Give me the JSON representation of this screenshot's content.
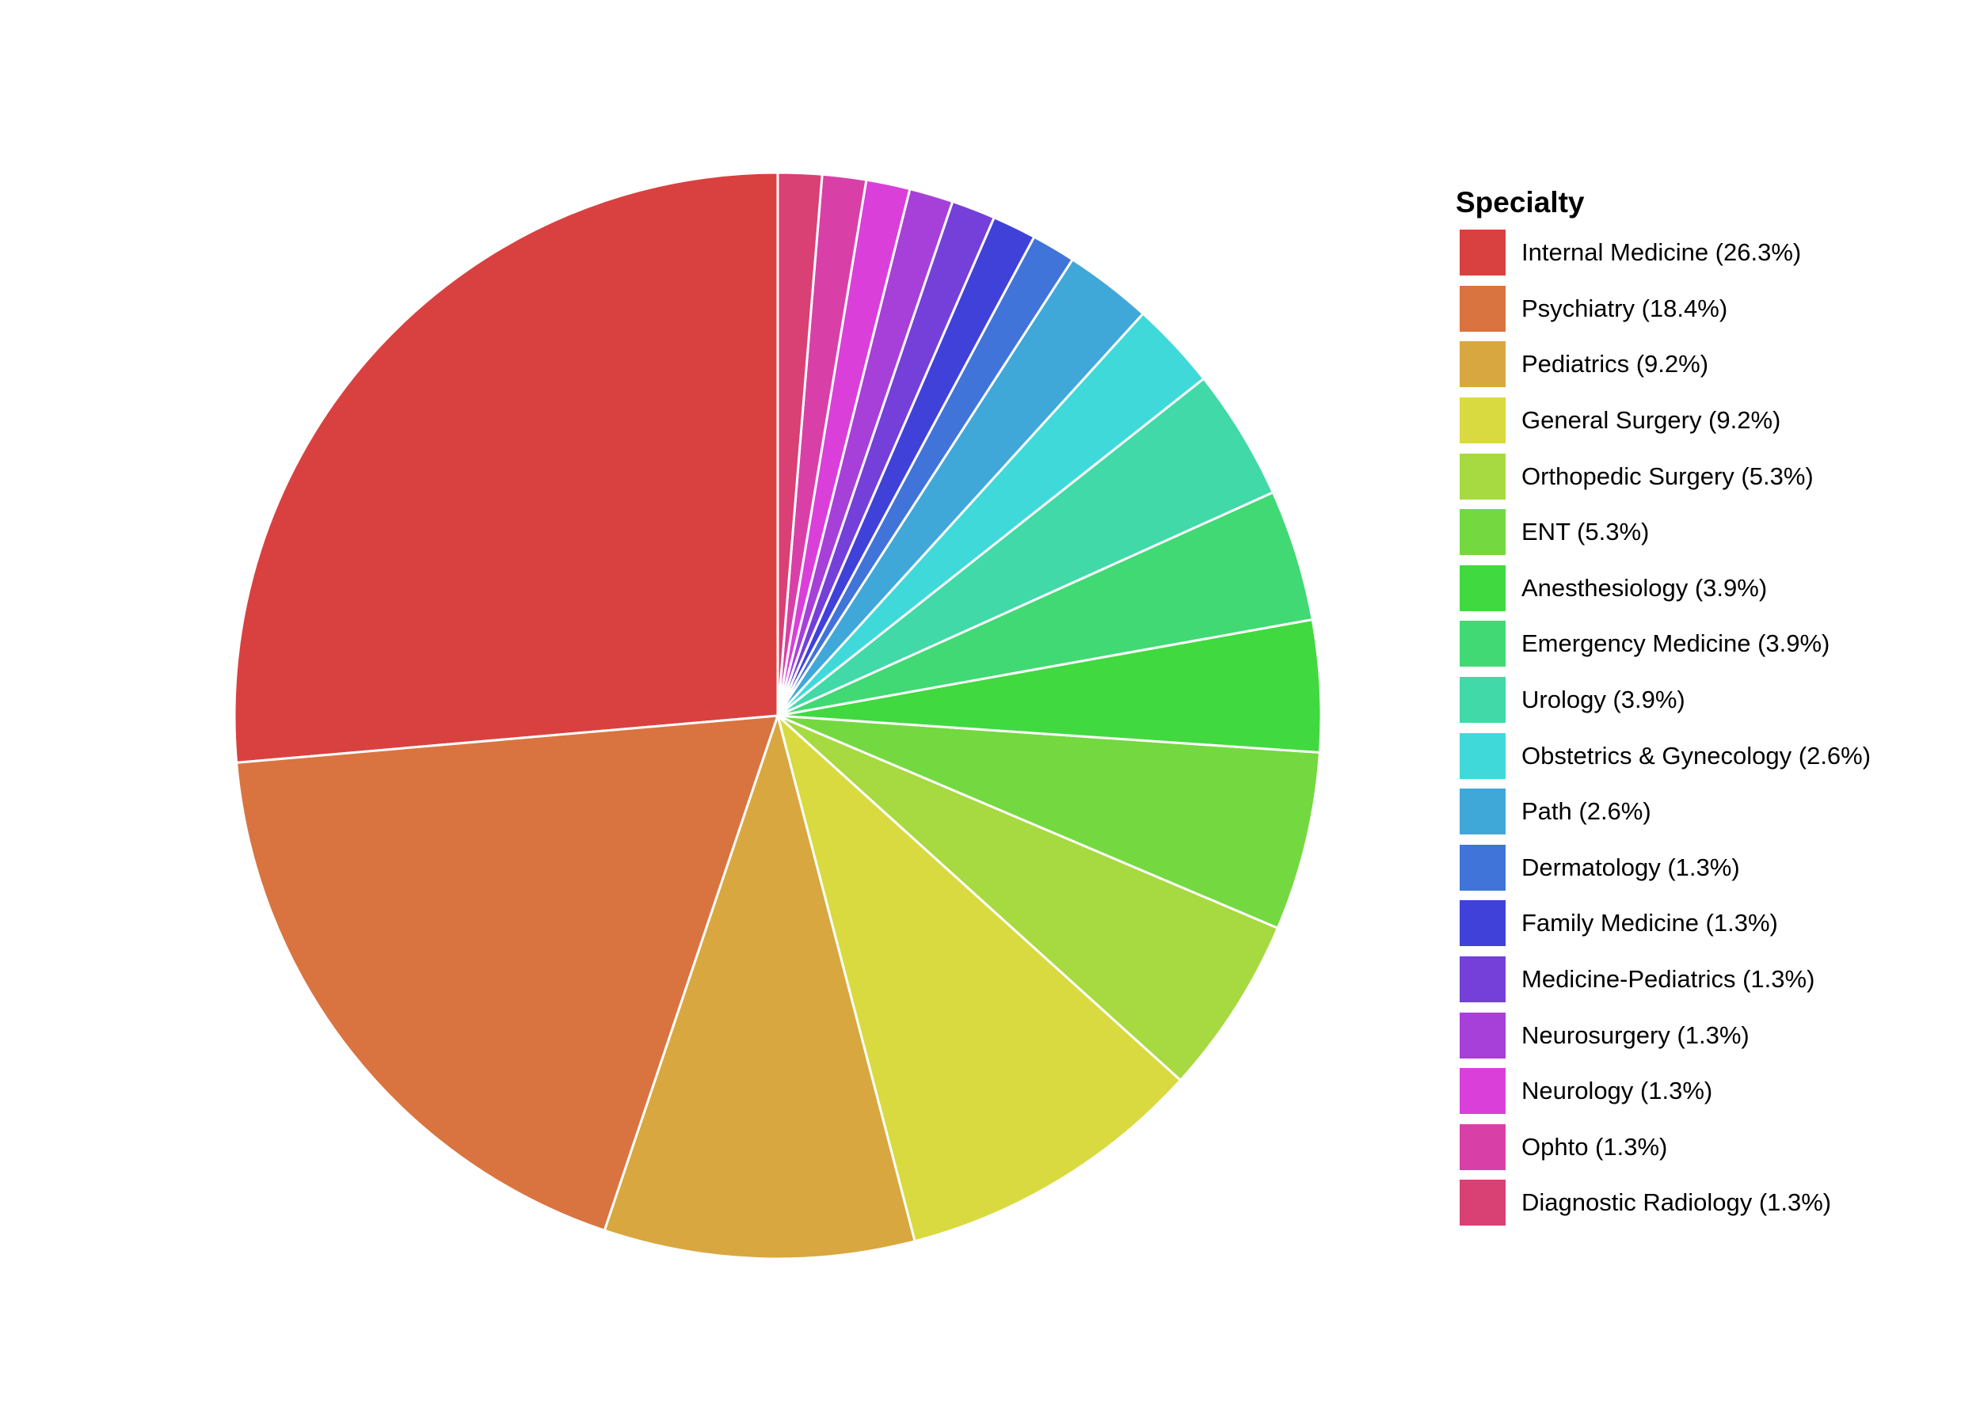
{
  "chart_data": {
    "type": "pie",
    "legend_title": "Specialty",
    "legend_position": "right",
    "start_angle": "12 o'clock",
    "direction": "counterclockwise",
    "slices": [
      {
        "label": "Internal Medicine (26.3%)",
        "name": "Internal Medicine",
        "value": 26.3,
        "color": "#D94140"
      },
      {
        "label": "Psychiatry (18.4%)",
        "name": "Psychiatry",
        "value": 18.4,
        "color": "#D97440"
      },
      {
        "label": "Pediatrics (9.2%)",
        "name": "Pediatrics",
        "value": 9.2,
        "color": "#D9A740"
      },
      {
        "label": "General Surgery (9.2%)",
        "name": "General Surgery",
        "value": 9.2,
        "color": "#D9DA40"
      },
      {
        "label": "Orthopedic Surgery (5.3%)",
        "name": "Orthopedic Surgery",
        "value": 5.3,
        "color": "#A7D940"
      },
      {
        "label": "ENT (5.3%)",
        "name": "ENT",
        "value": 5.3,
        "color": "#74D940"
      },
      {
        "label": "Anesthesiology (3.9%)",
        "name": "Anesthesiology",
        "value": 3.9,
        "color": "#41D940"
      },
      {
        "label": "Emergency Medicine (3.9%)",
        "name": "Emergency Medicine",
        "value": 3.9,
        "color": "#40D974"
      },
      {
        "label": "Urology (3.9%)",
        "name": "Urology",
        "value": 3.9,
        "color": "#40D9A7"
      },
      {
        "label": "Obstetrics & Gynecology (2.6%)",
        "name": "Obstetrics & Gynecology",
        "value": 2.6,
        "color": "#40D9DA"
      },
      {
        "label": "Path (2.6%)",
        "name": "Path",
        "value": 2.6,
        "color": "#40A7D9"
      },
      {
        "label": "Dermatology (1.3%)",
        "name": "Dermatology",
        "value": 1.3,
        "color": "#4074D9"
      },
      {
        "label": "Family Medicine (1.3%)",
        "name": "Family Medicine",
        "value": 1.3,
        "color": "#4041D9"
      },
      {
        "label": "Medicine-Pediatrics (1.3%)",
        "name": "Medicine-Pediatrics",
        "value": 1.3,
        "color": "#7440D9"
      },
      {
        "label": "Neurosurgery (1.3%)",
        "name": "Neurosurgery",
        "value": 1.3,
        "color": "#A740D9"
      },
      {
        "label": "Neurology (1.3%)",
        "name": "Neurology",
        "value": 1.3,
        "color": "#DA40D9"
      },
      {
        "label": "Ophto (1.3%)",
        "name": "Ophto",
        "value": 1.3,
        "color": "#D940A7"
      },
      {
        "label": "Diagnostic Radiology (1.3%)",
        "name": "Diagnostic Radiology",
        "value": 1.3,
        "color": "#D94074"
      }
    ]
  }
}
